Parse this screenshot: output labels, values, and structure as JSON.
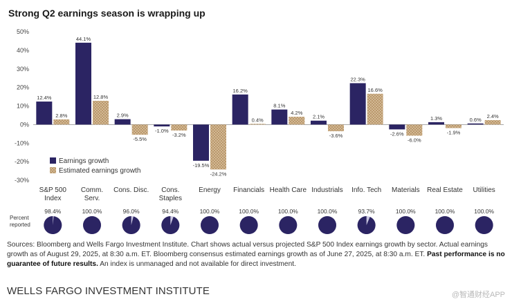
{
  "chart_data": {
    "type": "bar",
    "title": "Strong Q2 earnings season is wrapping up",
    "categories": [
      "S&P 500 Index",
      "Comm. Serv.",
      "Cons. Disc.",
      "Cons. Staples",
      "Energy",
      "Financials",
      "Health Care",
      "Industrials",
      "Info. Tech",
      "Materials",
      "Real Estate",
      "Utilities"
    ],
    "category_lines": [
      [
        "S&P 500",
        "Index"
      ],
      [
        "Comm.",
        "Serv."
      ],
      [
        "Cons. Disc."
      ],
      [
        "Cons.",
        "Staples"
      ],
      [
        "Energy"
      ],
      [
        "Financials"
      ],
      [
        "Health Care"
      ],
      [
        "Industrials"
      ],
      [
        "Info. Tech"
      ],
      [
        "Materials"
      ],
      [
        "Real Estate"
      ],
      [
        "Utilities"
      ]
    ],
    "series": [
      {
        "name": "Earnings growth",
        "color": "#2b2463",
        "values": [
          12.4,
          44.1,
          2.9,
          -1.0,
          -19.5,
          16.2,
          8.1,
          2.1,
          22.3,
          -2.6,
          1.3,
          0.6
        ]
      },
      {
        "name": "Estimated earnings growth",
        "color": "#c9a980",
        "pattern": "crosshatch",
        "values": [
          2.8,
          12.8,
          -5.5,
          -3.2,
          -24.2,
          0.4,
          4.2,
          -3.6,
          16.6,
          -6.0,
          -1.9,
          2.4
        ]
      }
    ],
    "ylim": [
      -30,
      50
    ],
    "yticks": [
      -30,
      -20,
      -10,
      0,
      10,
      20,
      30,
      40,
      50
    ],
    "ytick_labels": [
      "-30%",
      "-20%",
      "-10%",
      "0%",
      "10%",
      "20%",
      "30%",
      "40%",
      "50%"
    ],
    "value_labels": [
      [
        "12.4%",
        "44.1%",
        "2.9%",
        "-1.0%",
        "-19.5%",
        "16.2%",
        "8.1%",
        "2.1%",
        "22.3%",
        "-2.6%",
        "1.3%",
        "0.6%"
      ],
      [
        "2.8%",
        "12.8%",
        "-5.5%",
        "-3.2%",
        "-24.2%",
        "0.4%",
        "4.2%",
        "-3.6%",
        "16.6%",
        "-6.0%",
        "-1.9%",
        "2.4%"
      ]
    ],
    "legend_position": "lower-left",
    "percent_reported": {
      "label_lines": [
        "Percent",
        "reported"
      ],
      "values": [
        98.4,
        100.0,
        96.0,
        94.4,
        100.0,
        100.0,
        100.0,
        100.0,
        93.7,
        100.0,
        100.0,
        100.0
      ],
      "labels": [
        "98.4%",
        "100.0%",
        "96.0%",
        "94.4%",
        "100.0%",
        "100.0%",
        "100.0%",
        "100.0%",
        "93.7%",
        "100.0%",
        "100.0%",
        "100.0%"
      ],
      "fill_color": "#2b2463",
      "remainder_color": "#c9c6e0"
    }
  },
  "notes": {
    "text": "Sources: Bloomberg and Wells Fargo Investment Institute. Chart shows actual versus projected S&P 500 Index earnings growth by sector. Actual earnings growth as of August 29, 2025, at 8:30 a.m. ET. Bloomberg consensus estimated earnings growth as of June 27, 2025, at 8:30 a.m. ET.",
    "bold": "Past performance is no guarantee of future results.",
    "tail": "An index is unmanaged and not available for direct investment."
  },
  "footer": {
    "brand": "WELLS FARGO INVESTMENT INSTITUTE",
    "watermark": "@智通财经APP"
  }
}
